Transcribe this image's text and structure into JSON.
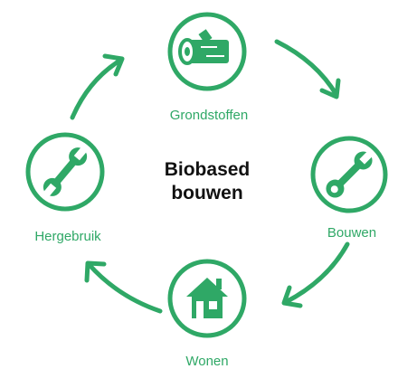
{
  "title": [
    "Biobased",
    "bouwen"
  ],
  "nodes": [
    {
      "label": "Grondstoffen"
    },
    {
      "label": "Bouwen"
    },
    {
      "label": "Wonen"
    },
    {
      "label": "Hergebruik"
    }
  ]
}
